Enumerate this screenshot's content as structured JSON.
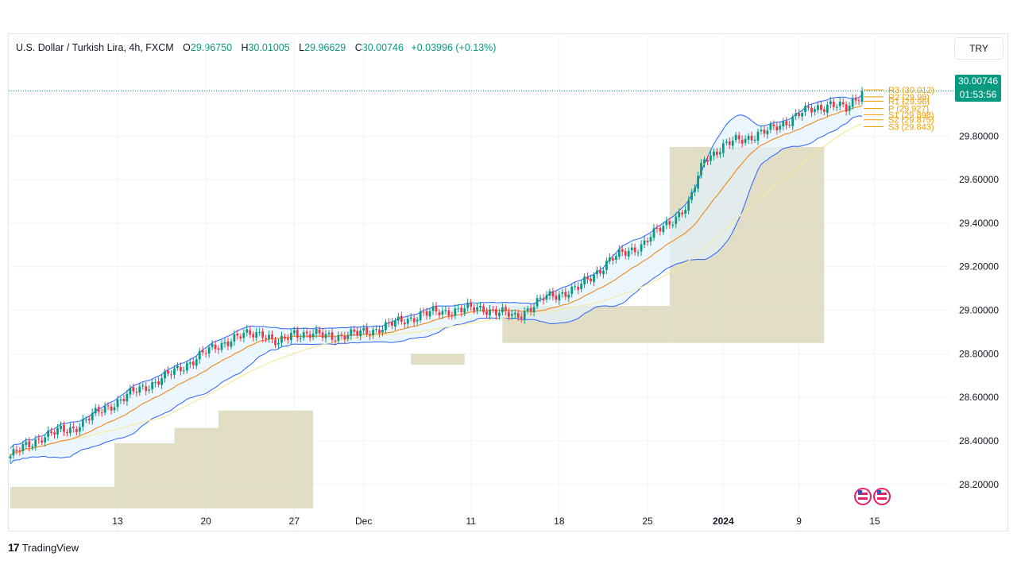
{
  "header": {
    "symbol": "U.S. Dollar / Turkish Lira, 4h, FXCM",
    "open_label": "O",
    "open": "29.96750",
    "high_label": "H",
    "high": "30.01005",
    "low_label": "L",
    "low": "29.96629",
    "close_label": "C",
    "close": "30.00746",
    "change": "+0.03996 (+0.13%)"
  },
  "currency_button": "TRY",
  "last_price": {
    "price": "30.00746",
    "countdown": "01:53:56"
  },
  "pivots": [
    {
      "label": "R3 (30.012)",
      "value": 30.012
    },
    {
      "label": "R2 (29.98)",
      "value": 29.98
    },
    {
      "label": "R1 (29.96)",
      "value": 29.96
    },
    {
      "label": "P (29.927)",
      "value": 29.927
    },
    {
      "label": "S1 (29.898)",
      "value": 29.898
    },
    {
      "label": "S2 (29.875)",
      "value": 29.875
    },
    {
      "label": "S3 (29.843)",
      "value": 29.843
    }
  ],
  "footer": {
    "brand_icon": "17",
    "brand": "TradingView"
  },
  "chart_data": {
    "type": "candlestick",
    "ylim": [
      28.09,
      30.06
    ],
    "y_ticks": [
      "29.80000",
      "29.60000",
      "29.40000",
      "29.20000",
      "29.00000",
      "28.80000",
      "28.60000",
      "28.40000",
      "28.20000"
    ],
    "y_tick_values": [
      29.8,
      29.6,
      29.4,
      29.2,
      29.0,
      28.8,
      28.6,
      28.4,
      28.2
    ],
    "x_ticks": [
      "13",
      "20",
      "27",
      "Dec",
      "11",
      "18",
      "25",
      "2024",
      "9",
      "15"
    ],
    "close_anchors": [
      [
        0,
        28.33
      ],
      [
        10,
        28.42
      ],
      [
        20,
        28.46
      ],
      [
        30,
        28.55
      ],
      [
        40,
        28.63
      ],
      [
        50,
        28.7
      ],
      [
        60,
        28.79
      ],
      [
        70,
        28.87
      ],
      [
        80,
        28.9
      ],
      [
        85,
        28.84
      ],
      [
        90,
        28.9
      ],
      [
        100,
        28.88
      ],
      [
        110,
        28.89
      ],
      [
        120,
        28.93
      ],
      [
        130,
        28.98
      ],
      [
        140,
        29.0
      ],
      [
        150,
        29.01
      ],
      [
        160,
        28.97
      ],
      [
        170,
        29.06
      ],
      [
        180,
        29.1
      ],
      [
        190,
        29.23
      ],
      [
        200,
        29.3
      ],
      [
        210,
        29.42
      ],
      [
        215,
        29.48
      ],
      [
        220,
        29.7
      ],
      [
        230,
        29.78
      ],
      [
        240,
        29.82
      ],
      [
        250,
        29.9
      ],
      [
        260,
        29.95
      ],
      [
        265,
        29.92
      ],
      [
        270,
        30.007
      ]
    ],
    "highlight_zones": [
      {
        "from": 0,
        "to": 33,
        "low": 28.09,
        "high": 28.19
      },
      {
        "from": 33,
        "to": 52,
        "low": 28.09,
        "high": 28.39
      },
      {
        "from": 52,
        "to": 66,
        "low": 28.09,
        "high": 28.46
      },
      {
        "from": 66,
        "to": 96,
        "low": 28.09,
        "high": 28.54
      },
      {
        "from": 127,
        "to": 144,
        "low": 28.75,
        "high": 28.8
      },
      {
        "from": 156,
        "to": 209,
        "low": 28.85,
        "high": 29.02
      },
      {
        "from": 209,
        "to": 258,
        "low": 28.85,
        "high": 29.75
      }
    ]
  }
}
